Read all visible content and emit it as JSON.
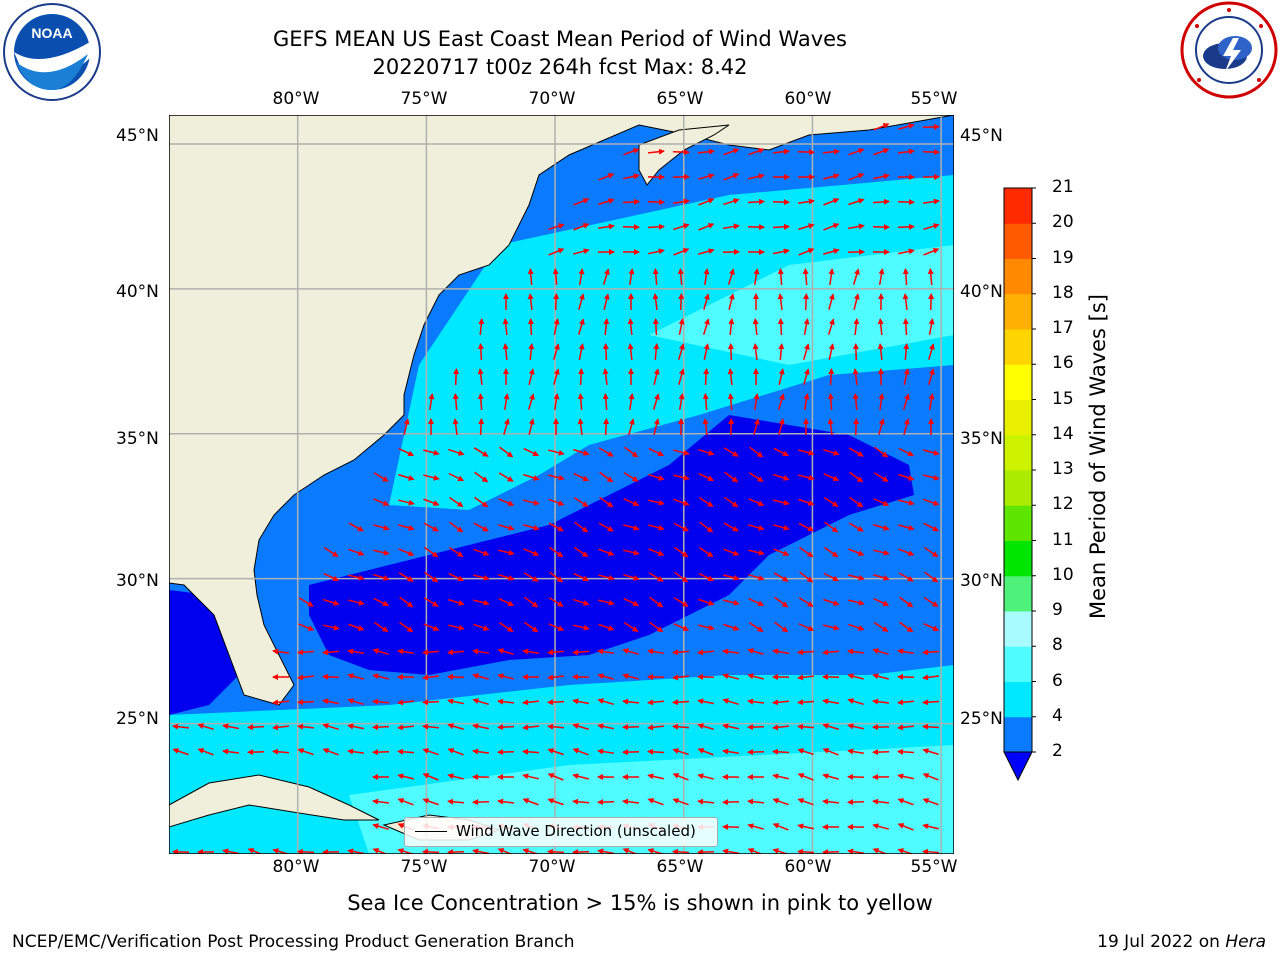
{
  "title": {
    "line1": "GEFS MEAN US East Coast Mean Period of Wind Waves",
    "line2": "20220717 t00z 264h fcst   Max: 8.42"
  },
  "logos": {
    "left": {
      "name": "NOAA",
      "badge_text": "NOAA"
    },
    "right": {
      "name": "National Weather Service"
    }
  },
  "map": {
    "lon_labels": [
      "80°W",
      "75°W",
      "70°W",
      "65°W",
      "60°W",
      "55°W"
    ],
    "lat_labels": [
      "45°N",
      "40°N",
      "35°N",
      "30°N",
      "25°N"
    ],
    "lon_range": [
      -85,
      -54.5
    ],
    "lat_range": [
      20.5,
      46
    ],
    "land_color": "#efefdb",
    "grid_color": "#b0b0b0",
    "arrow_color": "#ff0000"
  },
  "legend": {
    "label": "Wind Wave Direction (unscaled)"
  },
  "colorbar": {
    "label": "Mean Period of Wind Waves [s]",
    "ticks": [
      "2",
      "4",
      "6",
      "8",
      "9",
      "10",
      "11",
      "12",
      "13",
      "14",
      "15",
      "16",
      "17",
      "18",
      "19",
      "20",
      "21"
    ],
    "colors": [
      "#0a7bff",
      "#00e8ff",
      "#4ffcff",
      "#a8fcff",
      "#4ef27a",
      "#00e600",
      "#5ee600",
      "#aaeb00",
      "#ccf200",
      "#e8f000",
      "#ffff00",
      "#ffd500",
      "#ffb000",
      "#ff8a00",
      "#ff5a00",
      "#ff2a00",
      "#ff0000"
    ],
    "under_color": "#0000ff"
  },
  "ice_note": "Sea Ice Concentration > 15% is shown in pink to yellow",
  "footer": {
    "left": "NCEP/EMC/Verification Post Processing Product Generation Branch",
    "right_date": "19 Jul 2022 on ",
    "right_machine": "Hera"
  }
}
